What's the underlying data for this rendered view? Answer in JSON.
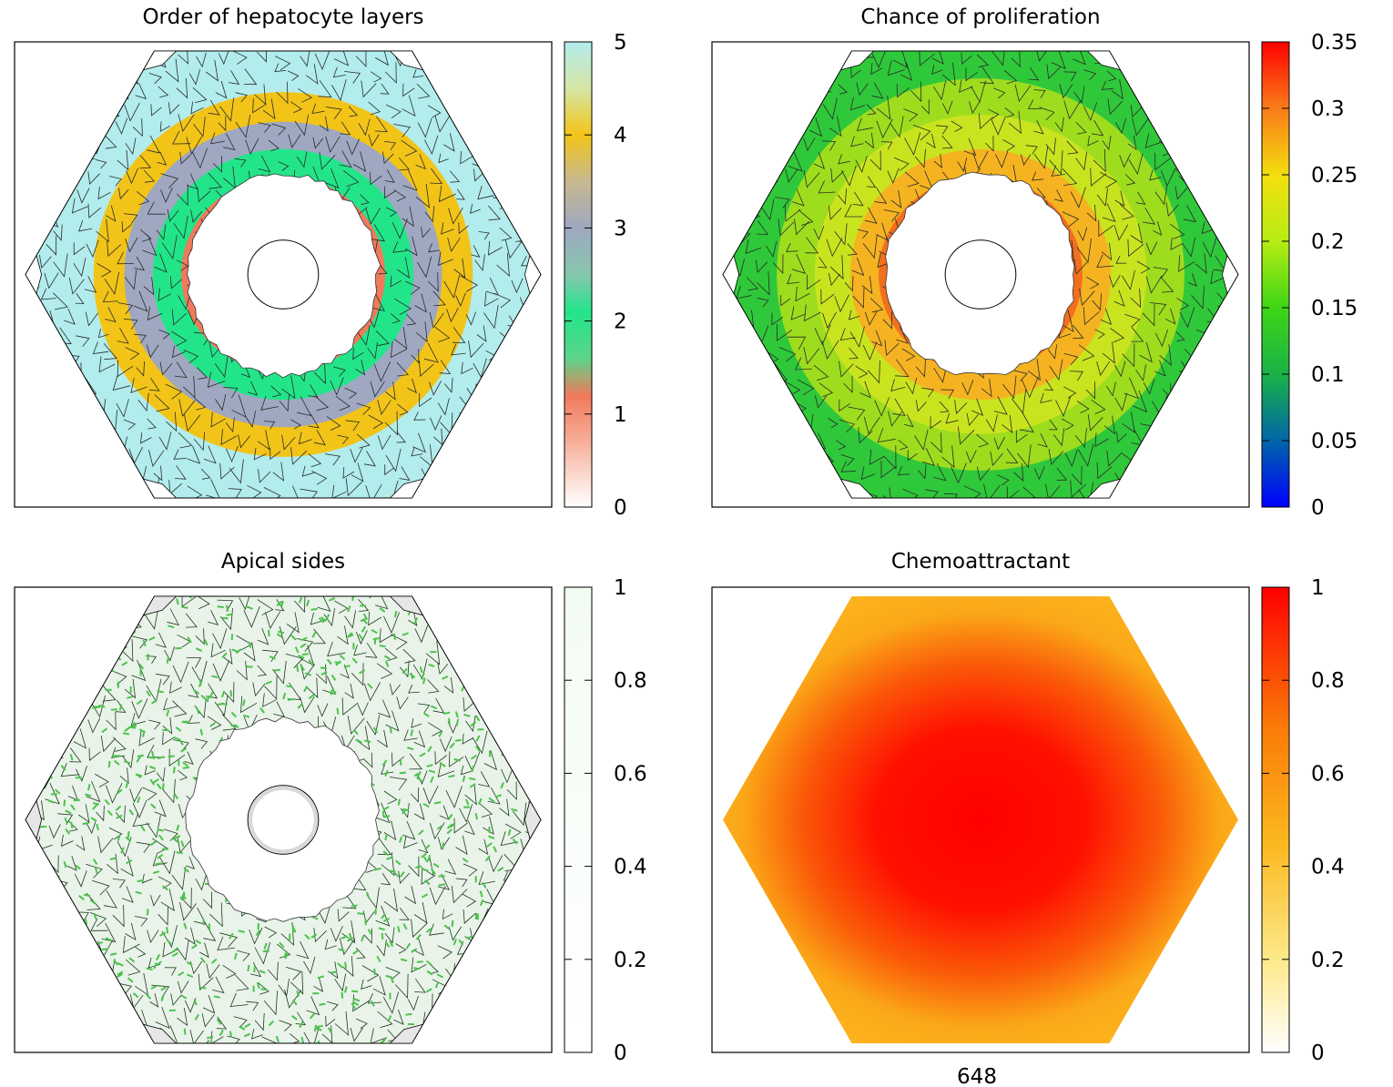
{
  "frame_label": "648",
  "chart_data": [
    {
      "type": "heatmap",
      "title": "Order of hepatocyte layers",
      "colorbar": {
        "range": [
          0,
          5
        ],
        "ticks": [
          "0",
          "1",
          "2",
          "3",
          "4",
          "5"
        ],
        "stops": [
          {
            "v": 0.0,
            "c": "#ffffff"
          },
          {
            "v": 0.16,
            "c": "#f6a48c"
          },
          {
            "v": 0.24,
            "c": "#f07a5b"
          },
          {
            "v": 0.32,
            "c": "#5bd58a"
          },
          {
            "v": 0.42,
            "c": "#22e58a"
          },
          {
            "v": 0.5,
            "c": "#86c6ae"
          },
          {
            "v": 0.6,
            "c": "#9fa8c0"
          },
          {
            "v": 0.7,
            "c": "#c7b890"
          },
          {
            "v": 0.8,
            "c": "#f2c418"
          },
          {
            "v": 0.9,
            "c": "#d6e6a6"
          },
          {
            "v": 1.0,
            "c": "#b2ecec"
          }
        ]
      },
      "scene": {
        "cells": true,
        "hole_fraction": 0.43,
        "vein_fraction": 0.14,
        "bands": [
          {
            "r": 0.43,
            "c": "#f07a5b"
          },
          {
            "r": 0.55,
            "c": "#22e58a"
          },
          {
            "r": 0.67,
            "c": "#9fa8c0"
          },
          {
            "r": 0.8,
            "c": "#f2c418"
          },
          {
            "r": 1.0,
            "c": "#b2ecec"
          }
        ],
        "corner_cutouts": true
      }
    },
    {
      "type": "heatmap",
      "title": "Chance of proliferation",
      "colorbar": {
        "range": [
          0,
          0.35
        ],
        "ticks": [
          "0",
          "0.05",
          "0.1",
          "0.15",
          "0.2",
          "0.25",
          "0.3",
          "0.35"
        ],
        "stops": [
          {
            "v": 0.0,
            "c": "#0000ff"
          },
          {
            "v": 0.14,
            "c": "#0064aa"
          },
          {
            "v": 0.28,
            "c": "#19b04a"
          },
          {
            "v": 0.43,
            "c": "#3fd616"
          },
          {
            "v": 0.57,
            "c": "#b6ec14"
          },
          {
            "v": 0.71,
            "c": "#f3e00f"
          },
          {
            "v": 0.86,
            "c": "#f97a18"
          },
          {
            "v": 1.0,
            "c": "#ff0000"
          }
        ]
      },
      "scene": {
        "cells": true,
        "hole_fraction": 0.43,
        "vein_fraction": 0.14,
        "bands": [
          {
            "r": 0.43,
            "c": "#f26f1e"
          },
          {
            "r": 0.55,
            "c": "#f5b321"
          },
          {
            "r": 0.7,
            "c": "#c9e41e"
          },
          {
            "r": 0.86,
            "c": "#9edc1e"
          },
          {
            "r": 1.0,
            "c": "#2fc83a"
          }
        ],
        "corner_cutouts": true
      }
    },
    {
      "type": "heatmap",
      "title": "Apical sides",
      "colorbar": {
        "range": [
          0,
          1
        ],
        "ticks": [
          "0",
          "0.2",
          "0.4",
          "0.6",
          "0.8",
          "1"
        ],
        "stops": [
          {
            "v": 0.0,
            "c": "#ffffff"
          },
          {
            "v": 1.0,
            "c": "#f2fbf2"
          }
        ]
      },
      "scene": {
        "cells": true,
        "hole_fraction": 0.43,
        "vein_fraction": 0.14,
        "bands": [
          {
            "r": 1.0,
            "c": "#e9f3e9"
          }
        ],
        "corner_cutouts": true
      }
    },
    {
      "type": "heatmap",
      "title": "Chemoattractant",
      "colorbar": {
        "range": [
          0,
          1
        ],
        "ticks": [
          "0",
          "0.2",
          "0.4",
          "0.6",
          "0.8",
          "1"
        ],
        "stops": [
          {
            "v": 0.0,
            "c": "#ffffff"
          },
          {
            "v": 0.2,
            "c": "#fde98a"
          },
          {
            "v": 0.45,
            "c": "#fbb81e"
          },
          {
            "v": 0.7,
            "c": "#fa7a08"
          },
          {
            "v": 1.0,
            "c": "#ff0000"
          }
        ]
      },
      "scene": {
        "cells": false,
        "radial_gradient": [
          {
            "offset": 0.0,
            "c": "#ff0000"
          },
          {
            "offset": 0.35,
            "c": "#ff1000"
          },
          {
            "offset": 0.6,
            "c": "#fa5a08"
          },
          {
            "offset": 0.8,
            "c": "#fba818"
          },
          {
            "offset": 1.0,
            "c": "#fcb61e"
          }
        ]
      }
    }
  ]
}
